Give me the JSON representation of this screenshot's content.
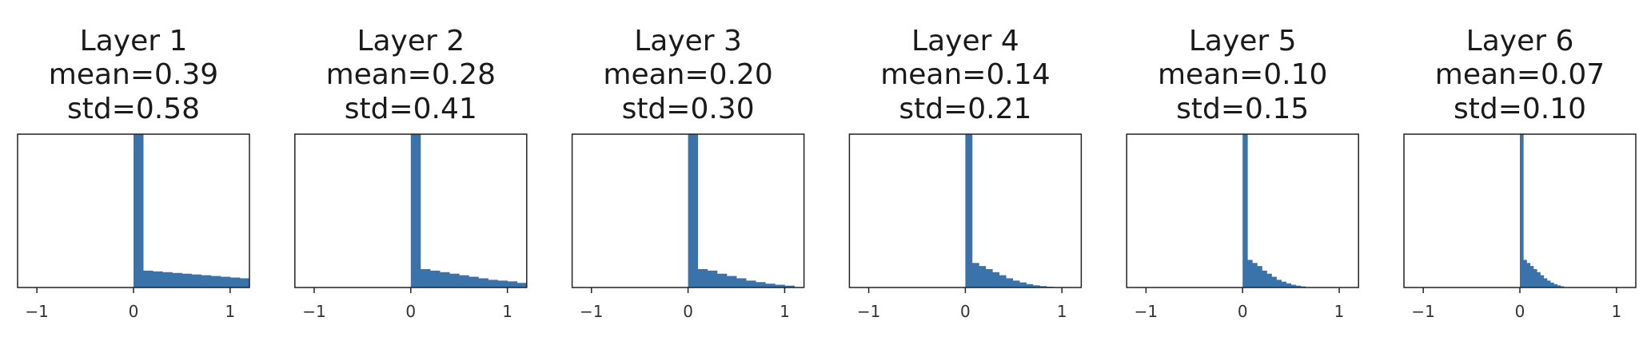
{
  "chart_data": [
    {
      "type": "histogram",
      "title_lines": [
        "Layer 1",
        "mean=0.39",
        "std=0.58"
      ],
      "xlabel": "",
      "ylabel": "",
      "xlim": [
        -1.2,
        1.2
      ],
      "xticks": [
        -1,
        0,
        1
      ],
      "xtick_labels": [
        "−1",
        "0",
        "1"
      ],
      "y_ticks_shown": false,
      "ylim": [
        0,
        1
      ],
      "bin_width": 0.1,
      "bins": [
        {
          "x": 0.0,
          "height": 1.0
        },
        {
          "x": 0.1,
          "height": 0.11
        },
        {
          "x": 0.2,
          "height": 0.105
        },
        {
          "x": 0.3,
          "height": 0.1
        },
        {
          "x": 0.4,
          "height": 0.095
        },
        {
          "x": 0.5,
          "height": 0.09
        },
        {
          "x": 0.6,
          "height": 0.085
        },
        {
          "x": 0.7,
          "height": 0.08
        },
        {
          "x": 0.8,
          "height": 0.075
        },
        {
          "x": 0.9,
          "height": 0.07
        },
        {
          "x": 1.0,
          "height": 0.065
        },
        {
          "x": 1.1,
          "height": 0.06
        }
      ]
    },
    {
      "type": "histogram",
      "title_lines": [
        "Layer 2",
        "mean=0.28",
        "std=0.41"
      ],
      "xlabel": "",
      "ylabel": "",
      "xlim": [
        -1.2,
        1.2
      ],
      "xticks": [
        -1,
        0,
        1
      ],
      "xtick_labels": [
        "−1",
        "0",
        "1"
      ],
      "y_ticks_shown": false,
      "ylim": [
        0,
        1
      ],
      "bin_width": 0.1,
      "bins": [
        {
          "x": 0.0,
          "height": 1.0
        },
        {
          "x": 0.1,
          "height": 0.12
        },
        {
          "x": 0.2,
          "height": 0.11
        },
        {
          "x": 0.3,
          "height": 0.1
        },
        {
          "x": 0.4,
          "height": 0.09
        },
        {
          "x": 0.5,
          "height": 0.08
        },
        {
          "x": 0.6,
          "height": 0.07
        },
        {
          "x": 0.7,
          "height": 0.06
        },
        {
          "x": 0.8,
          "height": 0.05
        },
        {
          "x": 0.9,
          "height": 0.045
        },
        {
          "x": 1.0,
          "height": 0.04
        },
        {
          "x": 1.1,
          "height": 0.03
        }
      ]
    },
    {
      "type": "histogram",
      "title_lines": [
        "Layer 3",
        "mean=0.20",
        "std=0.30"
      ],
      "xlabel": "",
      "ylabel": "",
      "xlim": [
        -1.2,
        1.2
      ],
      "xticks": [
        -1,
        0,
        1
      ],
      "xtick_labels": [
        "−1",
        "0",
        "1"
      ],
      "y_ticks_shown": false,
      "ylim": [
        0,
        1
      ],
      "bin_width": 0.1,
      "bins": [
        {
          "x": 0.0,
          "height": 1.0
        },
        {
          "x": 0.1,
          "height": 0.12
        },
        {
          "x": 0.2,
          "height": 0.11
        },
        {
          "x": 0.3,
          "height": 0.09
        },
        {
          "x": 0.4,
          "height": 0.075
        },
        {
          "x": 0.5,
          "height": 0.06
        },
        {
          "x": 0.6,
          "height": 0.045
        },
        {
          "x": 0.7,
          "height": 0.035
        },
        {
          "x": 0.8,
          "height": 0.025
        },
        {
          "x": 0.9,
          "height": 0.018
        },
        {
          "x": 1.0,
          "height": 0.012
        }
      ]
    },
    {
      "type": "histogram",
      "title_lines": [
        "Layer 4",
        "mean=0.14",
        "std=0.21"
      ],
      "xlabel": "",
      "ylabel": "",
      "xlim": [
        -1.2,
        1.2
      ],
      "xticks": [
        -1,
        0,
        1
      ],
      "xtick_labels": [
        "−1",
        "0",
        "1"
      ],
      "y_ticks_shown": false,
      "ylim": [
        0,
        1
      ],
      "bin_width": 0.07,
      "bins": [
        {
          "x": 0.0,
          "height": 1.0
        },
        {
          "x": 0.07,
          "height": 0.16
        },
        {
          "x": 0.14,
          "height": 0.14
        },
        {
          "x": 0.21,
          "height": 0.12
        },
        {
          "x": 0.28,
          "height": 0.1
        },
        {
          "x": 0.35,
          "height": 0.08
        },
        {
          "x": 0.42,
          "height": 0.06
        },
        {
          "x": 0.49,
          "height": 0.045
        },
        {
          "x": 0.56,
          "height": 0.033
        },
        {
          "x": 0.63,
          "height": 0.022
        },
        {
          "x": 0.7,
          "height": 0.014
        },
        {
          "x": 0.77,
          "height": 0.009
        },
        {
          "x": 0.84,
          "height": 0.005
        }
      ]
    },
    {
      "type": "histogram",
      "title_lines": [
        "Layer 5",
        "mean=0.10",
        "std=0.15"
      ],
      "xlabel": "",
      "ylabel": "",
      "xlim": [
        -1.2,
        1.2
      ],
      "xticks": [
        -1,
        0,
        1
      ],
      "xtick_labels": [
        "−1",
        "0",
        "1"
      ],
      "y_ticks_shown": false,
      "ylim": [
        0,
        1
      ],
      "bin_width": 0.05,
      "bins": [
        {
          "x": 0.0,
          "height": 1.0
        },
        {
          "x": 0.05,
          "height": 0.18
        },
        {
          "x": 0.1,
          "height": 0.16
        },
        {
          "x": 0.15,
          "height": 0.14
        },
        {
          "x": 0.2,
          "height": 0.11
        },
        {
          "x": 0.25,
          "height": 0.09
        },
        {
          "x": 0.3,
          "height": 0.07
        },
        {
          "x": 0.35,
          "height": 0.05
        },
        {
          "x": 0.4,
          "height": 0.038
        },
        {
          "x": 0.45,
          "height": 0.027
        },
        {
          "x": 0.5,
          "height": 0.018
        },
        {
          "x": 0.55,
          "height": 0.012
        },
        {
          "x": 0.6,
          "height": 0.007
        }
      ]
    },
    {
      "type": "histogram",
      "title_lines": [
        "Layer 6",
        "mean=0.07",
        "std=0.10"
      ],
      "xlabel": "",
      "ylabel": "",
      "xlim": [
        -1.2,
        1.2
      ],
      "xticks": [
        -1,
        0,
        1
      ],
      "xtick_labels": [
        "−1",
        "0",
        "1"
      ],
      "y_ticks_shown": false,
      "ylim": [
        0,
        1
      ],
      "bin_width": 0.035,
      "bins": [
        {
          "x": 0.0,
          "height": 1.0
        },
        {
          "x": 0.035,
          "height": 0.18
        },
        {
          "x": 0.07,
          "height": 0.16
        },
        {
          "x": 0.105,
          "height": 0.14
        },
        {
          "x": 0.14,
          "height": 0.12
        },
        {
          "x": 0.175,
          "height": 0.1
        },
        {
          "x": 0.21,
          "height": 0.08
        },
        {
          "x": 0.245,
          "height": 0.06
        },
        {
          "x": 0.28,
          "height": 0.045
        },
        {
          "x": 0.315,
          "height": 0.032
        },
        {
          "x": 0.35,
          "height": 0.022
        },
        {
          "x": 0.385,
          "height": 0.014
        },
        {
          "x": 0.42,
          "height": 0.008
        }
      ]
    }
  ],
  "style": {
    "bar_color": "#3a73aa"
  }
}
